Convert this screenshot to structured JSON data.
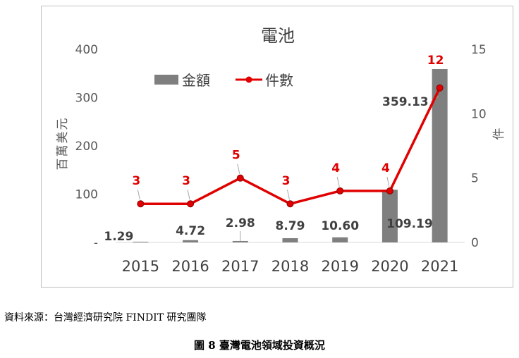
{
  "chart_data": {
    "type": "bar+line",
    "title": "電池",
    "categories": [
      "2015",
      "2016",
      "2017",
      "2018",
      "2019",
      "2020",
      "2021"
    ],
    "series": [
      {
        "name": "金額",
        "type": "bar",
        "axis": "left",
        "color": "#7f7f7f",
        "values": [
          1.29,
          4.72,
          2.98,
          8.79,
          10.6,
          109.19,
          359.13
        ],
        "labels": [
          "1.29",
          "4.72",
          "2.98",
          "8.79",
          "10.60",
          "109.19",
          "359.13"
        ]
      },
      {
        "name": "件數",
        "type": "line",
        "axis": "right",
        "color": "#e00000",
        "values": [
          3,
          3,
          5,
          3,
          4,
          4,
          12
        ],
        "labels": [
          "3",
          "3",
          "5",
          "3",
          "4",
          "4",
          "12"
        ]
      }
    ],
    "y_left": {
      "label": "百萬美元",
      "ylim": [
        0,
        400
      ],
      "ticks": [
        0,
        100,
        200,
        300,
        400
      ],
      "tick_labels": [
        "-",
        "100",
        "200",
        "300",
        "400"
      ]
    },
    "y_right": {
      "label": "件",
      "ylim": [
        0,
        15
      ],
      "ticks": [
        0,
        5,
        10,
        15
      ],
      "tick_labels": [
        "0",
        "5",
        "10",
        "15"
      ]
    },
    "grid": false,
    "legend": "top-center"
  },
  "source_note": "資料來源：台灣經濟研究院 FINDIT 研究團隊",
  "figure_caption": "圖 8  臺灣電池領域投資概況"
}
